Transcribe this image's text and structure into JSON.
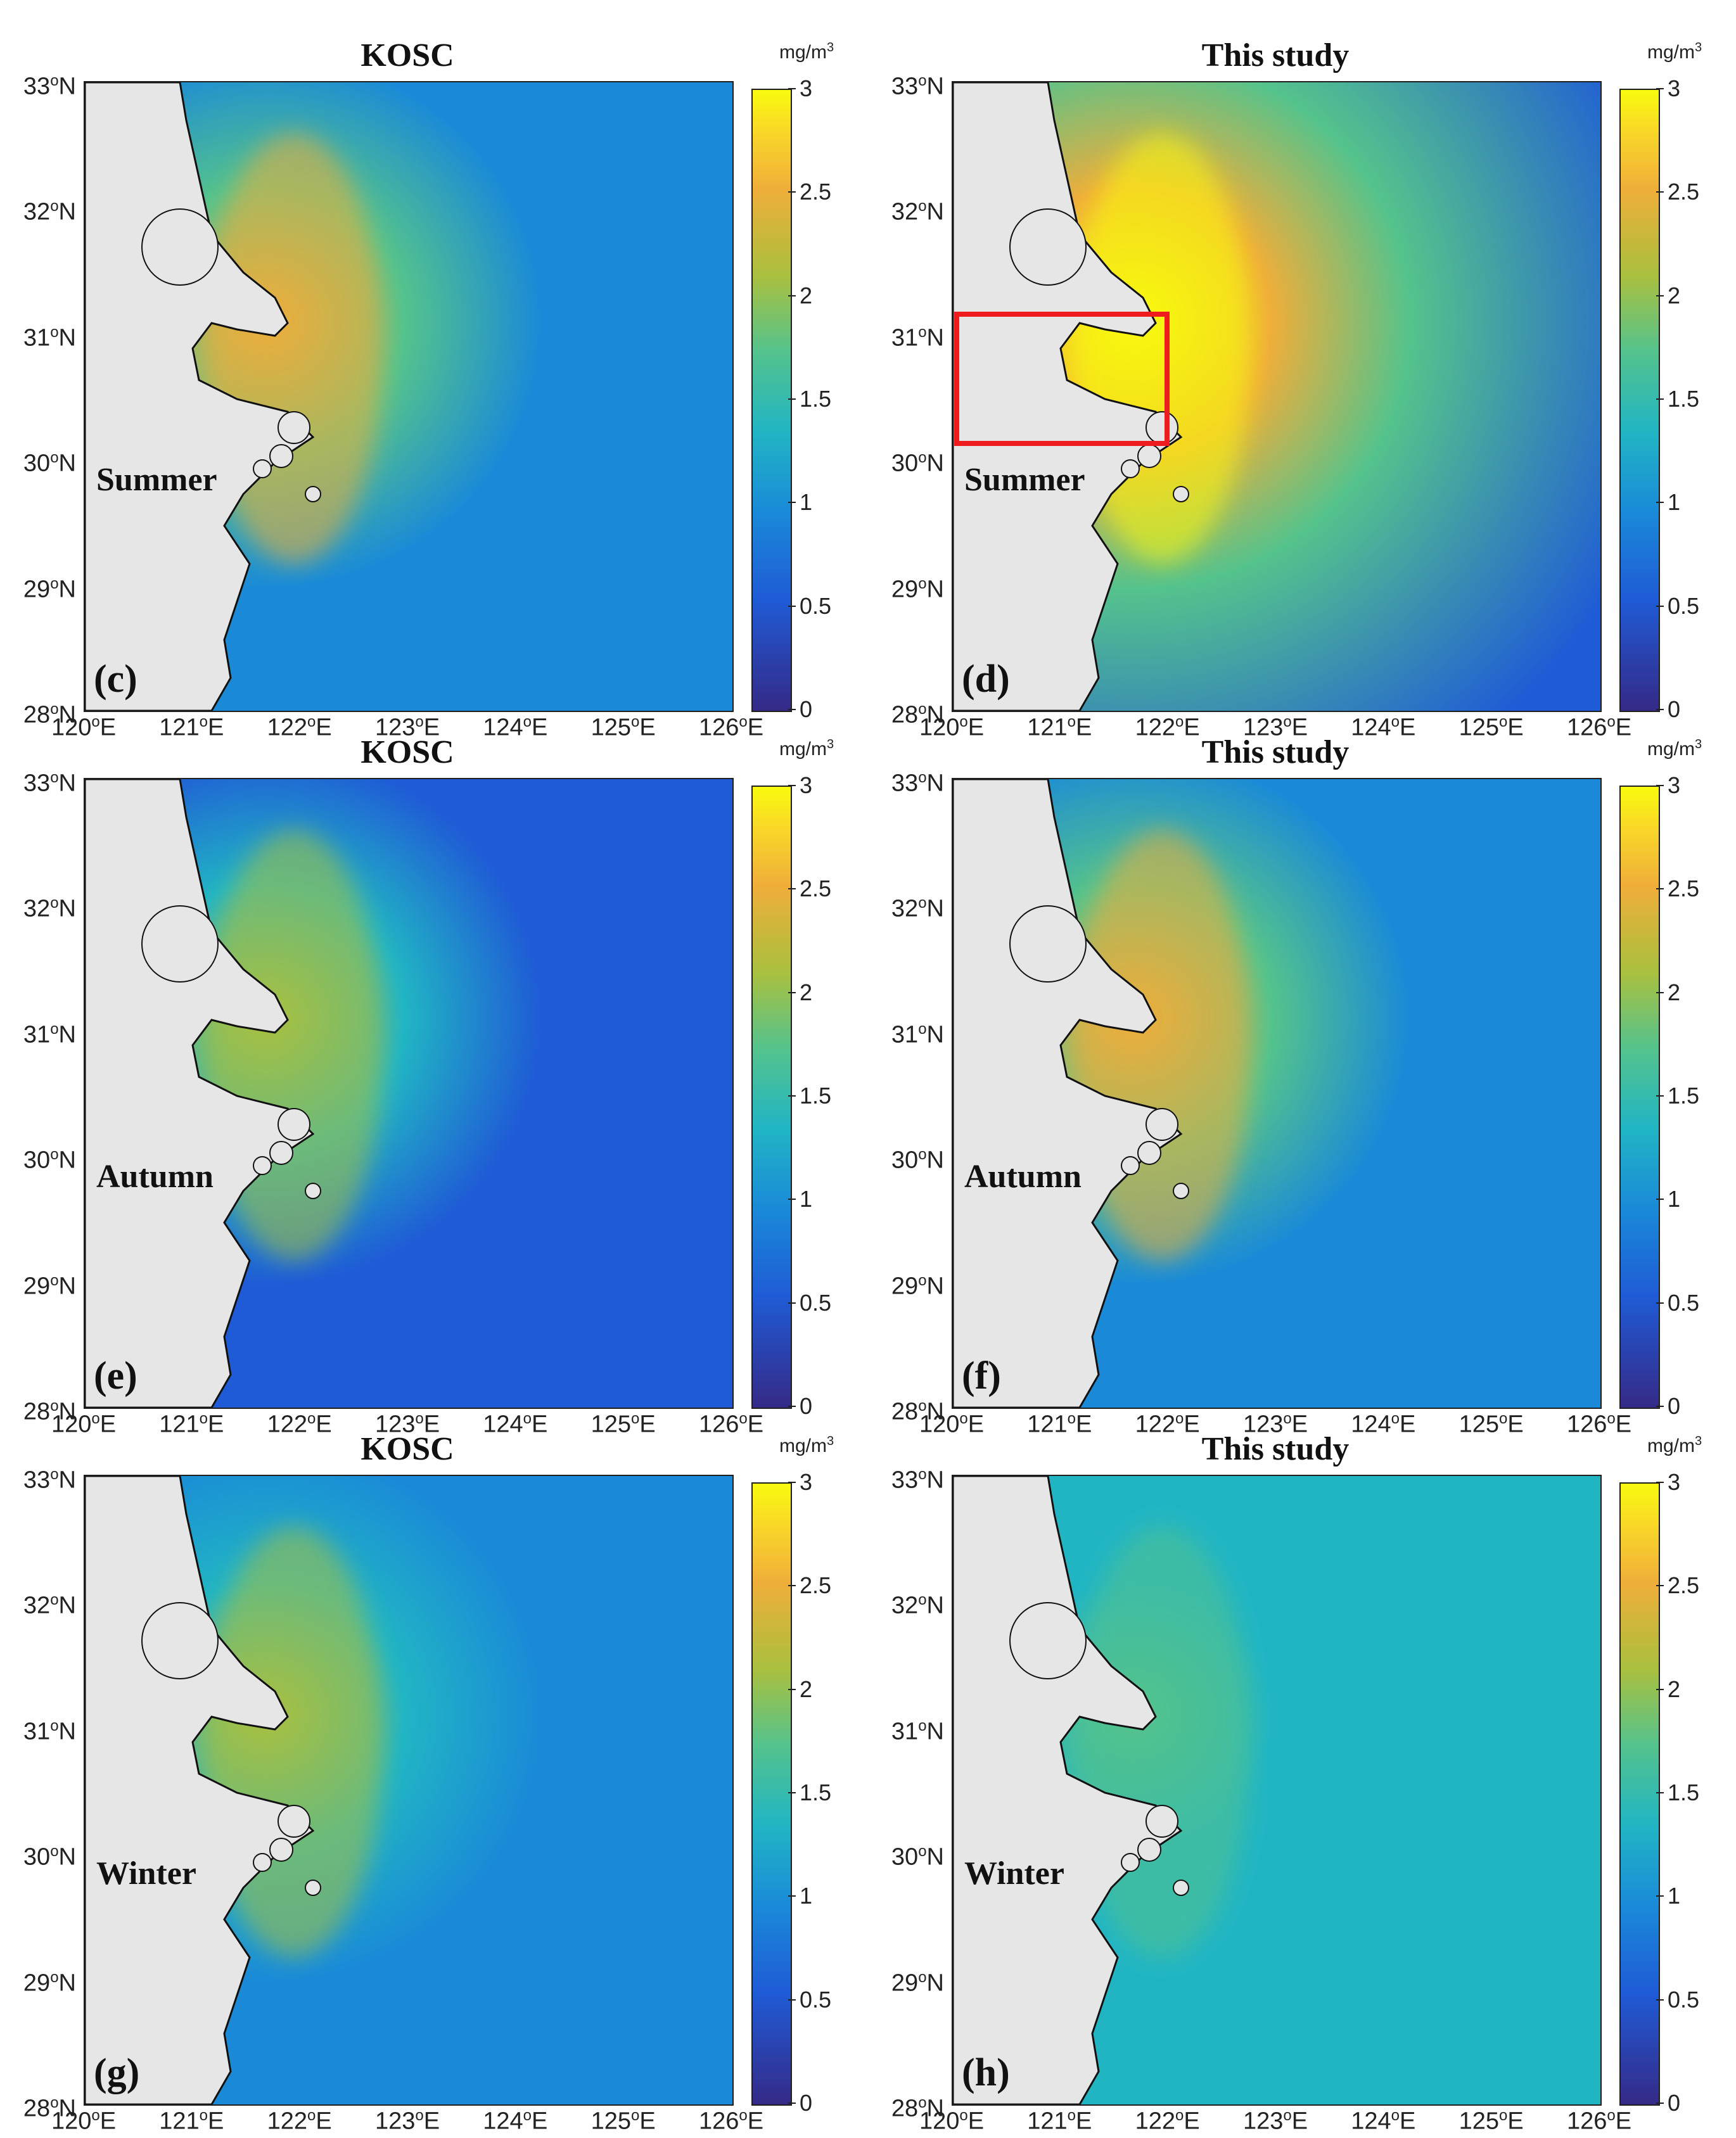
{
  "colorbar": {
    "unit": "mg/m",
    "unit_exp": "3",
    "ticks": [
      "0",
      "0.5",
      "1",
      "1.5",
      "2",
      "2.5",
      "3"
    ]
  },
  "axes": {
    "lat_labels": [
      {
        "deg": "33",
        "hemi": "N"
      },
      {
        "deg": "32",
        "hemi": "N"
      },
      {
        "deg": "31",
        "hemi": "N"
      },
      {
        "deg": "30",
        "hemi": "N"
      },
      {
        "deg": "29",
        "hemi": "N"
      },
      {
        "deg": "28",
        "hemi": "N"
      }
    ],
    "lon_labels": [
      {
        "deg": "120",
        "hemi": "E"
      },
      {
        "deg": "121",
        "hemi": "E"
      },
      {
        "deg": "122",
        "hemi": "E"
      },
      {
        "deg": "123",
        "hemi": "E"
      },
      {
        "deg": "124",
        "hemi": "E"
      },
      {
        "deg": "125",
        "hemi": "E"
      },
      {
        "deg": "126",
        "hemi": "E"
      }
    ]
  },
  "panels": [
    {
      "id": "c",
      "label": "(c)",
      "title": "KOSC",
      "season": "Summer",
      "plume": 0.75,
      "offshore": 0.35,
      "roi": false
    },
    {
      "id": "d",
      "label": "(d)",
      "title": "This study",
      "season": "Summer",
      "plume": 1.0,
      "offshore": 0.3,
      "roi": true
    },
    {
      "id": "e",
      "label": "(e)",
      "title": "KOSC",
      "season": "Autumn",
      "plume": 0.6,
      "offshore": 0.3,
      "roi": false
    },
    {
      "id": "f",
      "label": "(f)",
      "title": "This study",
      "season": "Autumn",
      "plume": 0.75,
      "offshore": 0.35,
      "roi": false
    },
    {
      "id": "g",
      "label": "(g)",
      "title": "KOSC",
      "season": "Winter",
      "plume": 0.6,
      "offshore": 0.45,
      "roi": false
    },
    {
      "id": "h",
      "label": "(h)",
      "title": "This study",
      "season": "Winter",
      "plume": 0.5,
      "offshore": 0.6,
      "roi": false
    }
  ],
  "colors": {
    "land": "#e6e6e6",
    "roi": "#ee1c1c",
    "colormap": [
      "#352a87",
      "#1f5bd6",
      "#1a8ad8",
      "#21b5c4",
      "#55c38c",
      "#a9c03f",
      "#efae3a",
      "#f9d629",
      "#f9fb0e"
    ]
  }
}
